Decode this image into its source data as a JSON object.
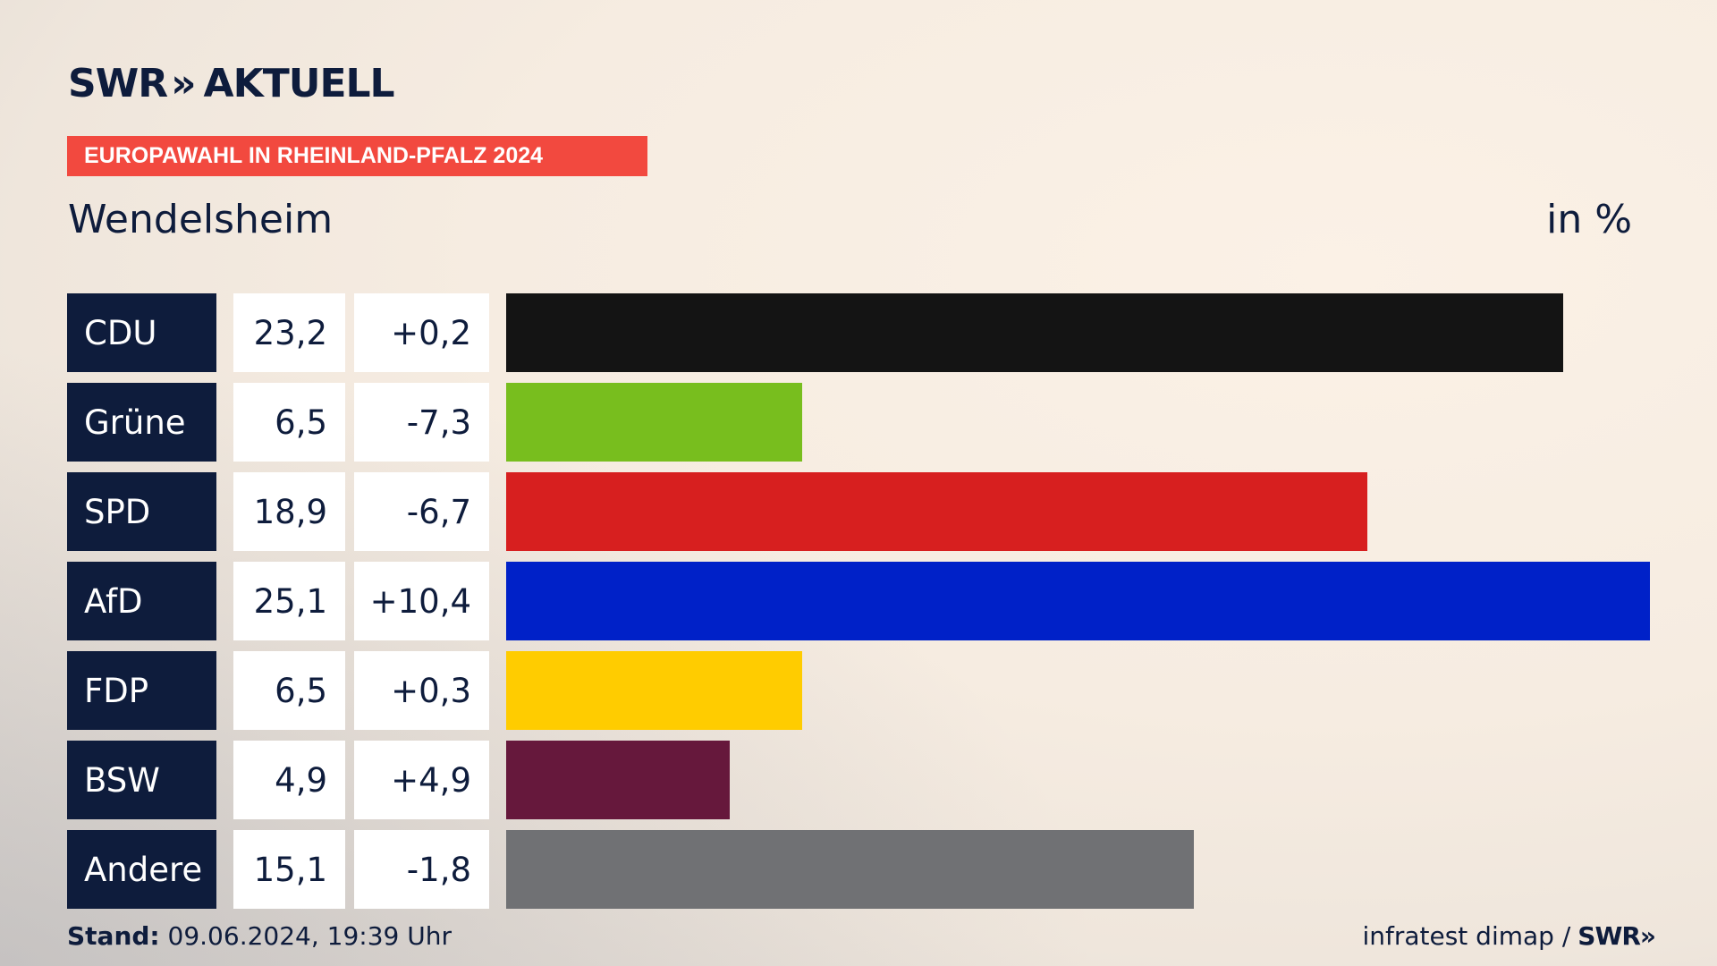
{
  "brand": {
    "name": "SWR",
    "arrows": "»",
    "product": "AKTUELL"
  },
  "banner": "EUROPAWAHL IN RHEINLAND-PFALZ 2024",
  "place": "Wendelsheim",
  "unit": "in %",
  "chart_data": {
    "type": "bar",
    "orientation": "horizontal",
    "categories": [
      "CDU",
      "Grüne",
      "SPD",
      "AfD",
      "FDP",
      "BSW",
      "Andere"
    ],
    "values": [
      23.2,
      6.5,
      18.9,
      25.1,
      6.5,
      4.9,
      15.1
    ],
    "value_labels": [
      "23,2",
      "6,5",
      "18,9",
      "25,1",
      "6,5",
      "4,9",
      "15,1"
    ],
    "diff_labels": [
      "+0,2",
      "-7,3",
      "-6,7",
      "+10,4",
      "+0,3",
      "+4,9",
      "-1,8"
    ],
    "colors": [
      "#141414",
      "#78be1e",
      "#d71f1f",
      "#0021c8",
      "#ffcc00",
      "#66183c",
      "#707174"
    ],
    "xlim": [
      0,
      25.1
    ]
  },
  "footer": {
    "stand_label": "Stand:",
    "stand_value": "09.06.2024, 19:39 Uhr",
    "source": "infratest dimap /",
    "source_brand": "SWR",
    "source_arrows": "»"
  }
}
